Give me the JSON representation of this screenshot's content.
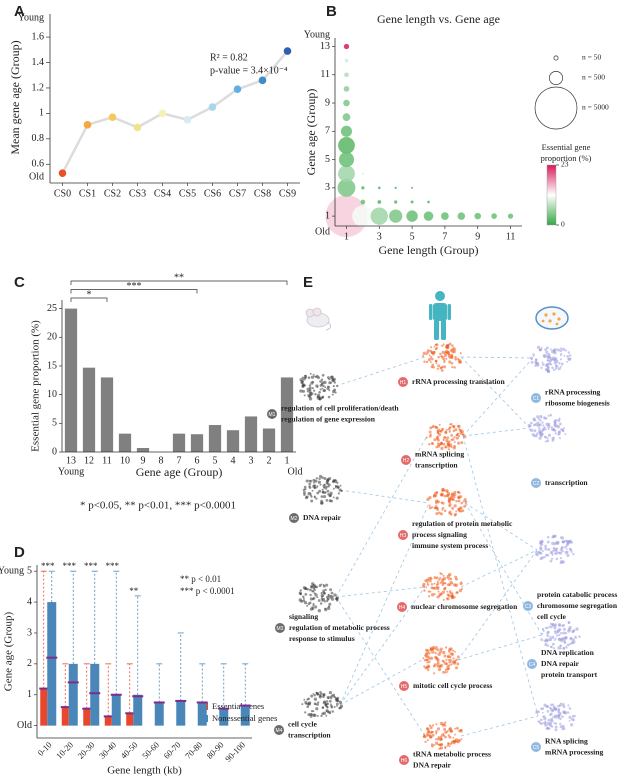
{
  "chart_data": [
    {
      "type": "line",
      "panel": "A",
      "y_label": "Mean gene age (Group)",
      "categories": [
        "CS0",
        "CS1",
        "CS2",
        "CS3",
        "CS4",
        "CS5",
        "CS6",
        "CS7",
        "CS8",
        "CS9"
      ],
      "values": [
        0.53,
        0.91,
        0.97,
        0.89,
        1.0,
        0.95,
        1.05,
        1.19,
        1.26,
        1.49
      ],
      "point_colors": [
        "#e8502a",
        "#f5a742",
        "#f8c95a",
        "#f1e38a",
        "#f3f2b8",
        "#d6ecee",
        "#a8d6ec",
        "#62b0df",
        "#3f8cc9",
        "#2f5fae"
      ],
      "line_color": "#dcdcdc",
      "ylim": [
        0.5,
        1.75
      ],
      "yticks": [
        0.6,
        0.8,
        1,
        1.2,
        1.4,
        1.6
      ],
      "top_label": "Young",
      "bottom_label": "Old",
      "annotations": [
        "R² = 0.82",
        "p-value = 3.4×10⁻⁴"
      ]
    },
    {
      "type": "bubble",
      "panel": "B",
      "title": "Gene length vs. Gene age",
      "x_label": "Gene length (Group)",
      "y_label": "Gene age (Group)",
      "x": [
        1,
        2,
        3,
        1,
        1,
        1,
        1,
        4,
        5,
        1,
        6,
        1,
        7,
        8,
        1,
        9,
        1,
        10,
        11,
        1,
        1,
        1,
        2,
        3,
        4,
        5,
        6,
        2,
        2,
        3,
        4,
        5
      ],
      "y": [
        1,
        1,
        1,
        3,
        4,
        6,
        5,
        1,
        1,
        7,
        1,
        8,
        1,
        1,
        9,
        1,
        10,
        1,
        1,
        13,
        11,
        12,
        2,
        2,
        2,
        2,
        2,
        3,
        4,
        3,
        3,
        3
      ],
      "sizes": [
        5000,
        1300,
        850,
        900,
        800,
        800,
        650,
        500,
        370,
        350,
        260,
        170,
        170,
        160,
        120,
        120,
        90,
        90,
        80,
        80,
        60,
        40,
        60,
        40,
        30,
        25,
        20,
        30,
        20,
        20,
        15,
        12
      ],
      "proportions": [
        14,
        11,
        6,
        4,
        6,
        2,
        3,
        4,
        3,
        3,
        3,
        4,
        3,
        3,
        4,
        3,
        5,
        3,
        3,
        23,
        7,
        9,
        3,
        2,
        2,
        2,
        2,
        2,
        10,
        2,
        2,
        2
      ],
      "xlim": [
        0.3,
        11.7
      ],
      "ylim": [
        0.3,
        13.6
      ],
      "xticks": [
        1,
        3,
        5,
        7,
        9,
        11
      ],
      "yticks": [
        1,
        3,
        5,
        7,
        9,
        11,
        13
      ],
      "top_label": "Young",
      "bottom_label": "Old",
      "size_legend": [
        {
          "value": 50,
          "label": "n = 50"
        },
        {
          "value": 500,
          "label": "n = 500"
        },
        {
          "value": 5000,
          "label": "n = 5000"
        }
      ],
      "colorbar_label": [
        "Essential gene",
        "proportion (%)"
      ],
      "clim": [
        0,
        23
      ],
      "colorbar_ticks": [
        0,
        23
      ],
      "colors": [
        "#36a745",
        "#ffffff",
        "#d81b5a"
      ]
    },
    {
      "type": "bar",
      "panel": "C",
      "y_label": "Essential gene proportion (%)",
      "x_label": "Gene age (Group)",
      "categories": [
        "13",
        "12",
        "11",
        "10",
        "9",
        "8",
        "7",
        "6",
        "5",
        "4",
        "3",
        "2",
        "1"
      ],
      "values": [
        25,
        14.7,
        13,
        3.2,
        0.7,
        0,
        3.2,
        3.1,
        4.7,
        3.8,
        6.2,
        4.1,
        13
      ],
      "color": "#808080",
      "ylim": [
        0,
        26.5
      ],
      "yticks": [
        0,
        5,
        10,
        15,
        20,
        25
      ],
      "left_label": "Young",
      "right_label": "Old",
      "significance": [
        {
          "from": 0,
          "to": 12,
          "label": "**"
        },
        {
          "from": 0,
          "to": 7,
          "label": "***"
        },
        {
          "from": 0,
          "to": 2,
          "label": "*"
        }
      ],
      "footnote": "* p<0.05, ** p<0.01, *** p<0.0001"
    },
    {
      "type": "box",
      "panel": "D",
      "y_label": "Gene age (Group)",
      "x_label": "Gene length (kb)",
      "categories": [
        "0-10",
        "10-20",
        "20-30",
        "30-40",
        "40-50",
        "50-60",
        "60-70",
        "70-80",
        "80-90",
        "90-100"
      ],
      "series": [
        {
          "name": "Essential genes",
          "color": "#e8472e",
          "q1": [
            0,
            0,
            0,
            0,
            0,
            null,
            null,
            null,
            null,
            null
          ],
          "median": [
            1.2,
            0.6,
            0.55,
            0.3,
            0.4,
            null,
            null,
            null,
            null,
            null
          ],
          "q3": [
            1.2,
            0.6,
            0.55,
            0.3,
            0.4,
            null,
            null,
            null,
            null,
            null
          ],
          "whisker_high": [
            5,
            2,
            2,
            2,
            2,
            null,
            null,
            null,
            null,
            null
          ]
        },
        {
          "name": "Nonessential genes",
          "color": "#4a86b8",
          "q1": [
            0,
            0,
            0,
            0,
            0,
            0,
            0,
            0,
            0,
            0
          ],
          "median": [
            2.2,
            1.4,
            1.05,
            1,
            0.95,
            0.75,
            0.8,
            0.75,
            0.55,
            0.65
          ],
          "q3": [
            4,
            2,
            2,
            1,
            1,
            0.75,
            0.8,
            0.75,
            0.55,
            0.65
          ],
          "whisker_high": [
            5,
            5,
            5,
            5,
            4.2,
            2,
            3,
            2,
            2,
            2
          ]
        }
      ],
      "median_color": "#7b2d8e",
      "ylim": [
        -0.4,
        5.2
      ],
      "yticks": [
        {
          "value": 0,
          "label": "Old"
        },
        1,
        2,
        3,
        4,
        5
      ],
      "top_label": "Young",
      "significance": [
        "***",
        "***",
        "***",
        "***",
        "**",
        null,
        null,
        null,
        null,
        null
      ],
      "annotations": [
        "** p < 0.01",
        "*** p < 0.0001"
      ]
    }
  ],
  "network": {
    "panel": "E",
    "groups": [
      {
        "nodes": [
          {
            "id": "M1",
            "label": [
              "regulation of cell proliferation/death",
              "regulation of gene expression"
            ]
          },
          {
            "id": "M2",
            "label": [
              "DNA repair"
            ]
          },
          {
            "id": "M3",
            "label": [
              "signaling",
              "regulation of metabolic process",
              "response to stimulus"
            ]
          },
          {
            "id": "M4",
            "label": [
              "cell cycle",
              "transcription"
            ]
          }
        ]
      },
      {
        "nodes": [
          {
            "id": "H1",
            "label": [
              "rRNA processing translation"
            ]
          },
          {
            "id": "H2",
            "label": [
              "mRNA splicing",
              "transcription"
            ]
          },
          {
            "id": "H3",
            "label": [
              "regulation of protein metabolic",
              "process signaling",
              "immune system process"
            ]
          },
          {
            "id": "H4",
            "label": [
              "nuclear chromosome segregation"
            ]
          },
          {
            "id": "H5",
            "label": [
              "mitotic cell cycle process"
            ]
          },
          {
            "id": "H6",
            "label": [
              "tRNA metabolic process",
              "DNA repair"
            ]
          }
        ]
      },
      {
        "nodes": [
          {
            "id": "C1",
            "label": [
              "rRNA processing",
              "ribosome biogenesis"
            ]
          },
          {
            "id": "C2",
            "label": [
              "transcription"
            ]
          },
          {
            "id": "C3",
            "label": [
              "protein catabolic process",
              "chromosome segregation",
              "cell cycle"
            ]
          },
          {
            "id": "C4",
            "label": [
              "DNA replication",
              "DNA repair",
              "protein transport"
            ]
          },
          {
            "id": "C5",
            "label": [
              "RNA splicing",
              "mRNA processing"
            ]
          }
        ]
      }
    ]
  }
}
